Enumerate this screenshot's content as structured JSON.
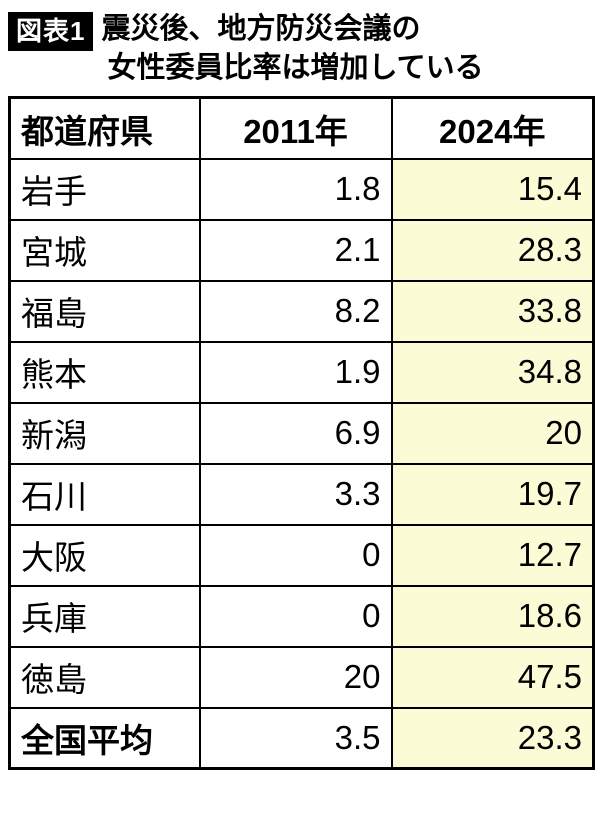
{
  "figure": {
    "badge": "図表1",
    "title_line1": "震災後、地方防災会議の",
    "title_line2": "女性委員比率は増加している"
  },
  "colors": {
    "highlight_2024_column": "#fbfbd6",
    "border": "#000000",
    "badge_bg": "#000000",
    "badge_text": "#ffffff"
  },
  "chart_data": {
    "type": "table",
    "title": "震災後、地方防災会議の女性委員比率は増加している",
    "columns": [
      "都道府県",
      "2011年",
      "2024年"
    ],
    "unit": "percent",
    "rows": [
      {
        "pref": "岩手",
        "v2011": "1.8",
        "v2024": "15.4"
      },
      {
        "pref": "宮城",
        "v2011": "2.1",
        "v2024": "28.3"
      },
      {
        "pref": "福島",
        "v2011": "8.2",
        "v2024": "33.8"
      },
      {
        "pref": "熊本",
        "v2011": "1.9",
        "v2024": "34.8"
      },
      {
        "pref": "新潟",
        "v2011": "6.9",
        "v2024": "20"
      },
      {
        "pref": "石川",
        "v2011": "3.3",
        "v2024": "19.7"
      },
      {
        "pref": "大阪",
        "v2011": "0",
        "v2024": "12.7"
      },
      {
        "pref": "兵庫",
        "v2011": "0",
        "v2024": "18.6"
      },
      {
        "pref": "徳島",
        "v2011": "20",
        "v2024": "47.5"
      }
    ],
    "summary_row": {
      "pref": "全国平均",
      "v2011": "3.5",
      "v2024": "23.3"
    }
  }
}
